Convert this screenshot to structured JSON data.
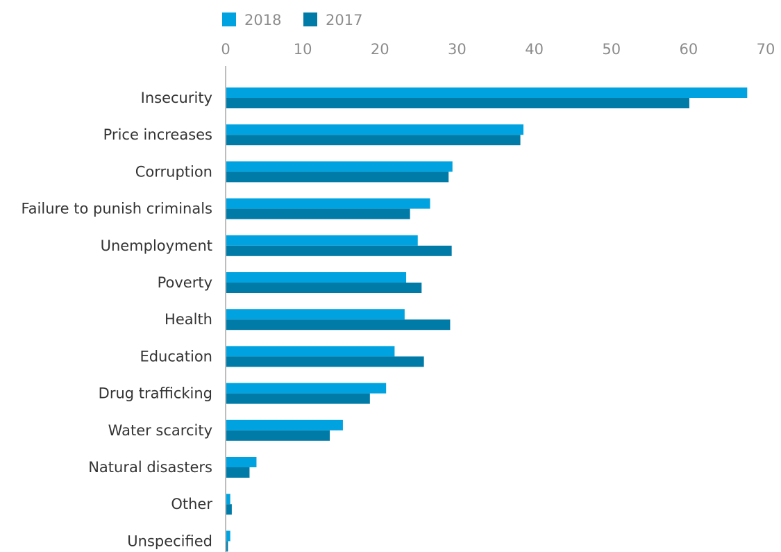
{
  "chart_data": {
    "type": "bar",
    "orientation": "horizontal",
    "title": "",
    "xlabel": "",
    "ylabel": "",
    "xlim": [
      0,
      70
    ],
    "ticks": [
      0,
      10,
      20,
      30,
      40,
      50,
      60,
      70
    ],
    "tick_labels": [
      "0",
      "10",
      "20",
      "30",
      "40",
      "50",
      "60",
      "70"
    ],
    "axis_position": "top",
    "grid": false,
    "legend_position": "top-left",
    "categories": [
      "Insecurity",
      "Price increases",
      "Corruption",
      "Failure to punish criminals",
      "Unemployment",
      "Poverty",
      "Health",
      "Education",
      "Drug trafficking",
      "Water scarcity",
      "Natural disasters",
      "Other",
      "Unspecified"
    ],
    "series": [
      {
        "name": "2018",
        "color": "#00a3e0",
        "values": [
          67.6,
          38.6,
          29.4,
          26.5,
          24.9,
          23.4,
          23.2,
          21.9,
          20.8,
          15.2,
          4.0,
          0.6,
          0.6
        ]
      },
      {
        "name": "2017",
        "color": "#007ba7",
        "values": [
          60.1,
          38.2,
          28.9,
          23.9,
          29.3,
          25.4,
          29.1,
          25.7,
          18.7,
          13.5,
          3.1,
          0.8,
          0.3
        ]
      }
    ]
  }
}
